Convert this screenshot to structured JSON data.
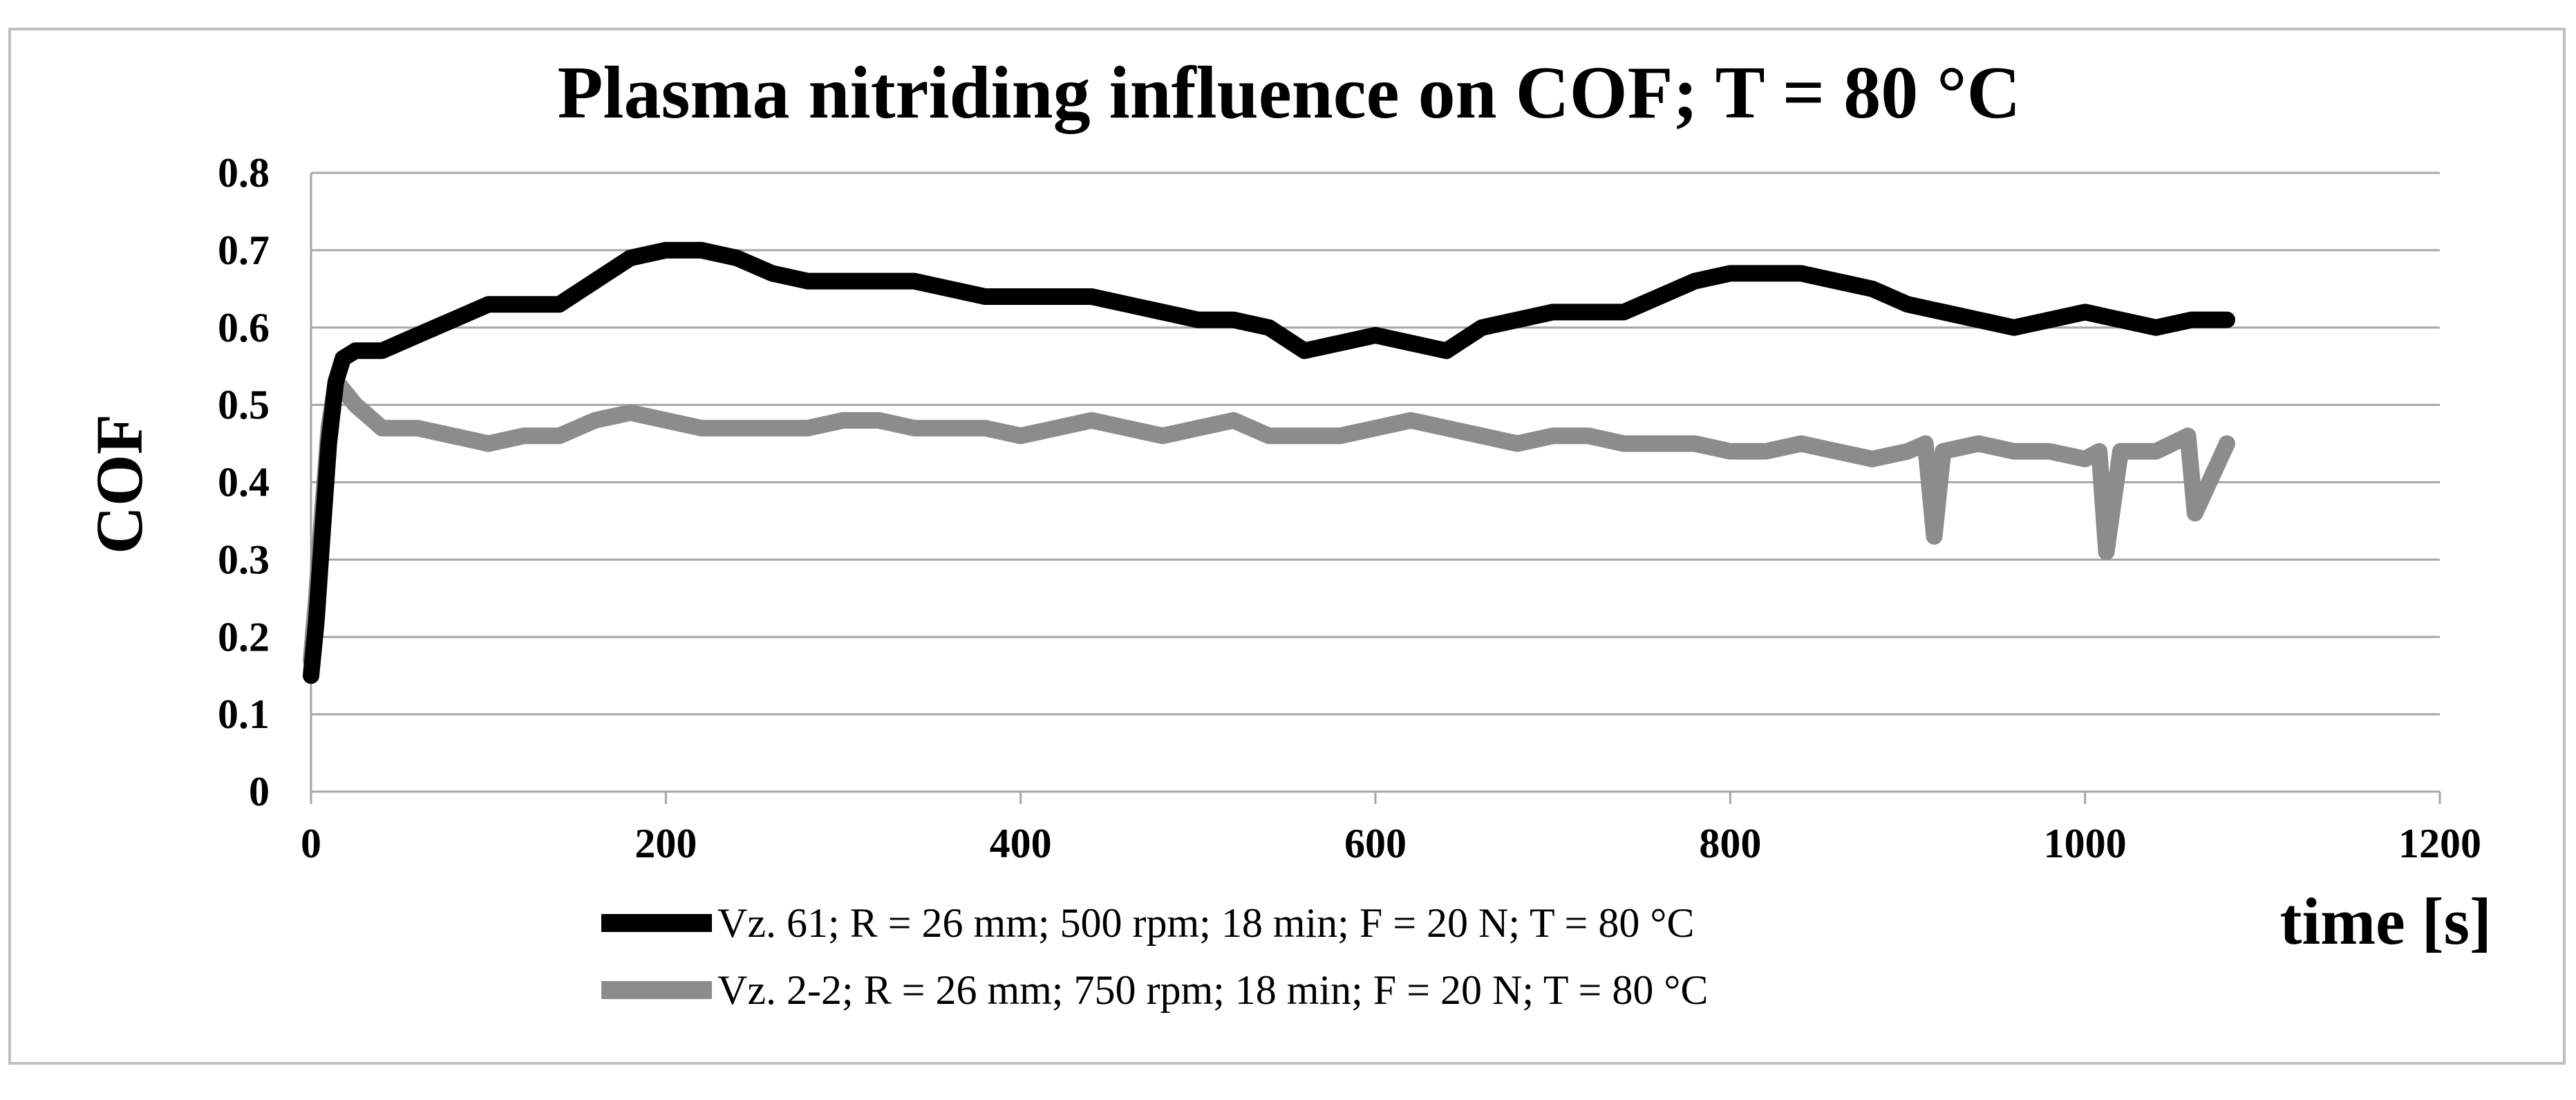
{
  "chart_data": {
    "type": "line",
    "title": "Plasma nitriding influence on COF; T = 80 °C",
    "xlabel": "time [s]",
    "ylabel": "COF",
    "xlim": [
      0,
      1200
    ],
    "ylim": [
      0,
      0.8
    ],
    "x_ticks": [
      "0",
      "200",
      "400",
      "600",
      "800",
      "1000",
      "1200"
    ],
    "y_ticks": [
      "0",
      "0.1",
      "0.2",
      "0.3",
      "0.4",
      "0.5",
      "0.6",
      "0.7",
      "0.8"
    ],
    "grid": "horizontal",
    "legend_position": "bottom",
    "series": [
      {
        "name": "Vz. 61; R = 26 mm; 500 rpm; 18 min; F = 20 N; T = 80 °C",
        "color": "#000000",
        "x": [
          0,
          3,
          6,
          10,
          14,
          18,
          25,
          40,
          60,
          80,
          100,
          120,
          140,
          160,
          180,
          200,
          220,
          240,
          260,
          280,
          300,
          320,
          340,
          360,
          380,
          400,
          420,
          440,
          460,
          480,
          500,
          520,
          540,
          560,
          580,
          600,
          620,
          640,
          660,
          680,
          700,
          720,
          740,
          760,
          780,
          800,
          820,
          840,
          860,
          880,
          900,
          920,
          940,
          960,
          980,
          1000,
          1020,
          1040,
          1060,
          1080
        ],
        "y": [
          0.15,
          0.22,
          0.32,
          0.45,
          0.53,
          0.56,
          0.57,
          0.57,
          0.59,
          0.61,
          0.63,
          0.63,
          0.63,
          0.66,
          0.69,
          0.7,
          0.7,
          0.69,
          0.67,
          0.66,
          0.66,
          0.66,
          0.66,
          0.65,
          0.64,
          0.64,
          0.64,
          0.64,
          0.63,
          0.62,
          0.61,
          0.61,
          0.6,
          0.57,
          0.58,
          0.59,
          0.58,
          0.57,
          0.6,
          0.61,
          0.62,
          0.62,
          0.62,
          0.64,
          0.66,
          0.67,
          0.67,
          0.67,
          0.66,
          0.65,
          0.63,
          0.62,
          0.61,
          0.6,
          0.61,
          0.62,
          0.61,
          0.6,
          0.61,
          0.61
        ]
      },
      {
        "name": "Vz. 2-2; R = 26 mm; 750 rpm; 18 min; F = 20 N; T = 80 °C",
        "color": "#8c8c8c",
        "x": [
          0,
          3,
          6,
          10,
          14,
          18,
          25,
          40,
          60,
          80,
          100,
          120,
          140,
          160,
          180,
          200,
          220,
          240,
          260,
          280,
          300,
          320,
          340,
          360,
          380,
          400,
          420,
          440,
          460,
          480,
          500,
          520,
          540,
          560,
          580,
          600,
          620,
          640,
          660,
          680,
          700,
          720,
          740,
          760,
          780,
          800,
          820,
          840,
          860,
          880,
          900,
          910,
          915,
          920,
          940,
          960,
          980,
          1000,
          1008,
          1012,
          1020,
          1040,
          1058,
          1062,
          1080
        ],
        "y": [
          0.17,
          0.25,
          0.35,
          0.47,
          0.53,
          0.52,
          0.5,
          0.47,
          0.47,
          0.46,
          0.45,
          0.46,
          0.46,
          0.48,
          0.49,
          0.48,
          0.47,
          0.47,
          0.47,
          0.47,
          0.48,
          0.48,
          0.47,
          0.47,
          0.47,
          0.46,
          0.47,
          0.48,
          0.47,
          0.46,
          0.47,
          0.48,
          0.46,
          0.46,
          0.46,
          0.47,
          0.48,
          0.47,
          0.46,
          0.45,
          0.46,
          0.46,
          0.45,
          0.45,
          0.45,
          0.44,
          0.44,
          0.45,
          0.44,
          0.43,
          0.44,
          0.45,
          0.33,
          0.44,
          0.45,
          0.44,
          0.44,
          0.43,
          0.44,
          0.31,
          0.44,
          0.44,
          0.46,
          0.36,
          0.45
        ]
      }
    ]
  }
}
